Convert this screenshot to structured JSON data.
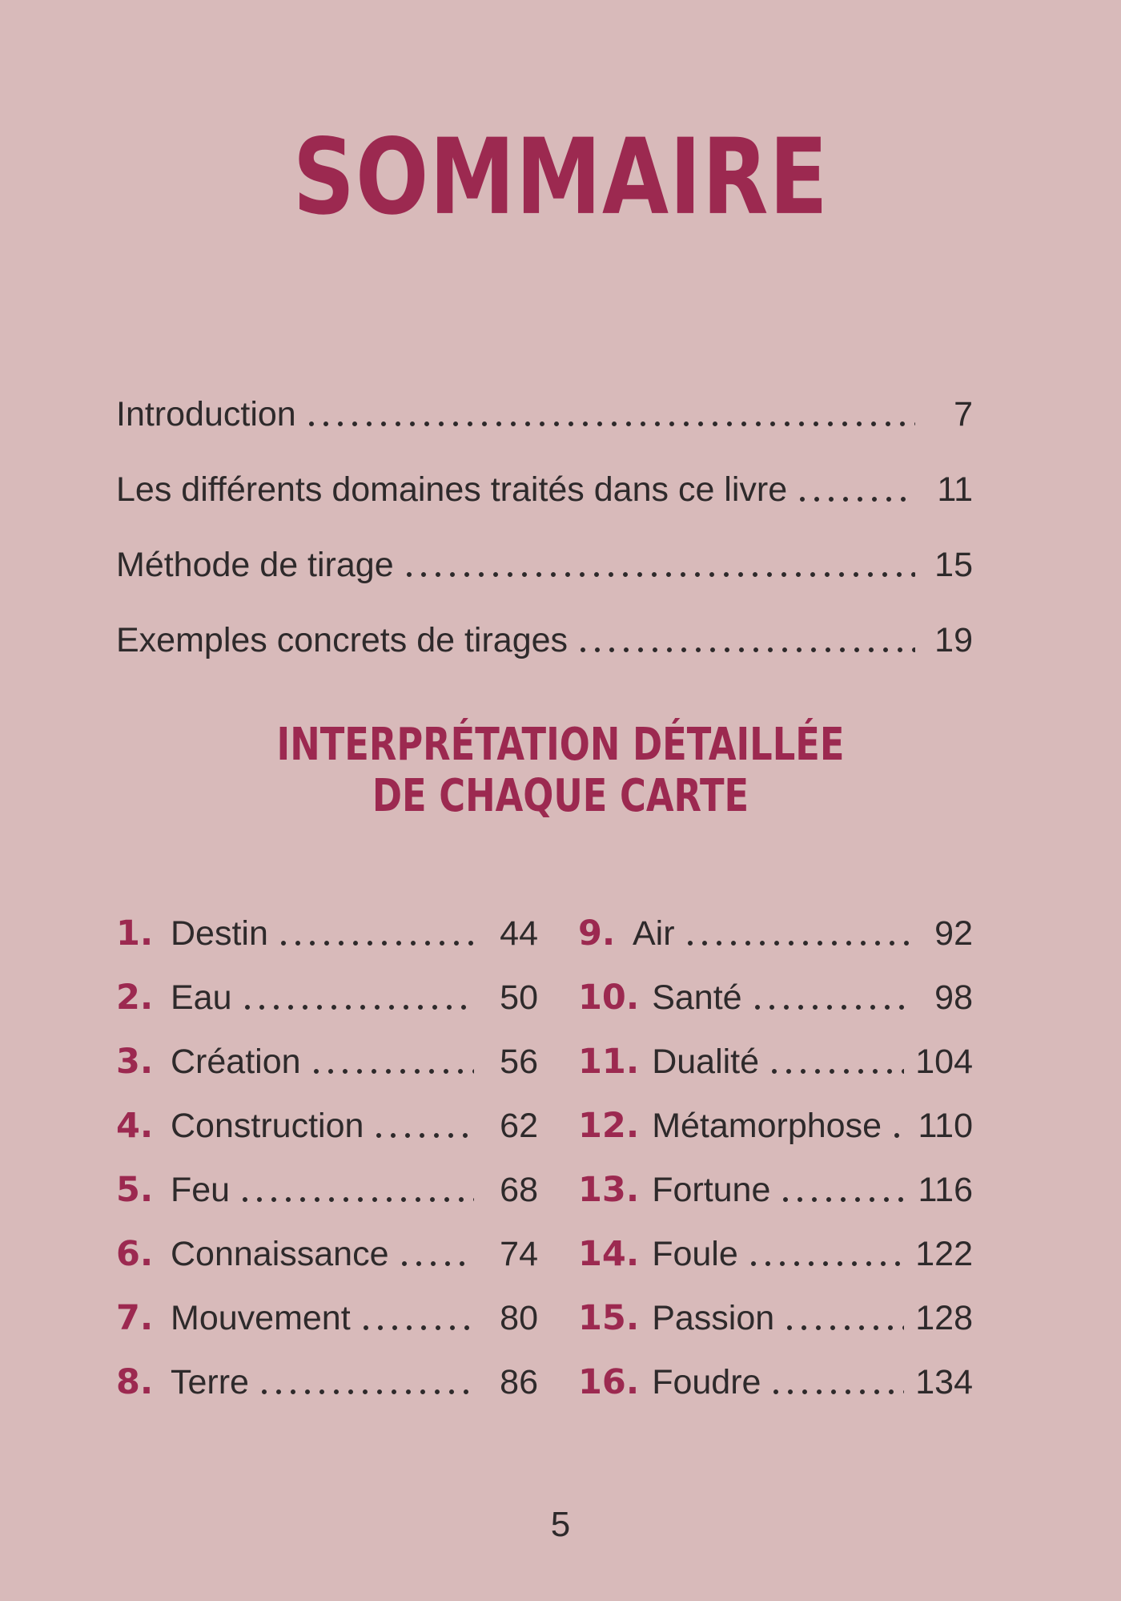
{
  "page": {
    "title": "SOMMAIRE",
    "page_number": "5",
    "colors": {
      "background": "#d8baba",
      "accent": "#9c2950",
      "text": "#2e2a2b"
    }
  },
  "intro_toc": [
    {
      "label": "Introduction",
      "page": "7"
    },
    {
      "label": "Les différents domaines traités dans ce livre",
      "page": "11"
    },
    {
      "label": "Méthode de tirage",
      "page": "15"
    },
    {
      "label": "Exemples concrets de tirages",
      "page": "19"
    }
  ],
  "section": {
    "heading_line1": "INTERPRÉTATION DÉTAILLÉE",
    "heading_line2": "DE CHAQUE CARTE"
  },
  "cards_left": [
    {
      "num": "1.",
      "label": "Destin",
      "page": "44"
    },
    {
      "num": "2.",
      "label": "Eau",
      "page": "50"
    },
    {
      "num": "3.",
      "label": "Création",
      "page": "56"
    },
    {
      "num": "4.",
      "label": "Construction",
      "page": "62"
    },
    {
      "num": "5.",
      "label": "Feu",
      "page": "68"
    },
    {
      "num": "6.",
      "label": "Connaissance",
      "page": "74"
    },
    {
      "num": "7.",
      "label": "Mouvement",
      "page": "80"
    },
    {
      "num": "8.",
      "label": "Terre",
      "page": "86"
    }
  ],
  "cards_right": [
    {
      "num": "9.",
      "label": "Air",
      "page": "92"
    },
    {
      "num": "10.",
      "label": "Santé",
      "page": "98"
    },
    {
      "num": "11.",
      "label": "Dualité",
      "page": "104"
    },
    {
      "num": "12.",
      "label": "Métamorphose",
      "page": "110"
    },
    {
      "num": "13.",
      "label": "Fortune",
      "page": "116"
    },
    {
      "num": "14.",
      "label": "Foule",
      "page": "122"
    },
    {
      "num": "15.",
      "label": "Passion",
      "page": "128"
    },
    {
      "num": "16.",
      "label": "Foudre",
      "page": "134"
    }
  ]
}
